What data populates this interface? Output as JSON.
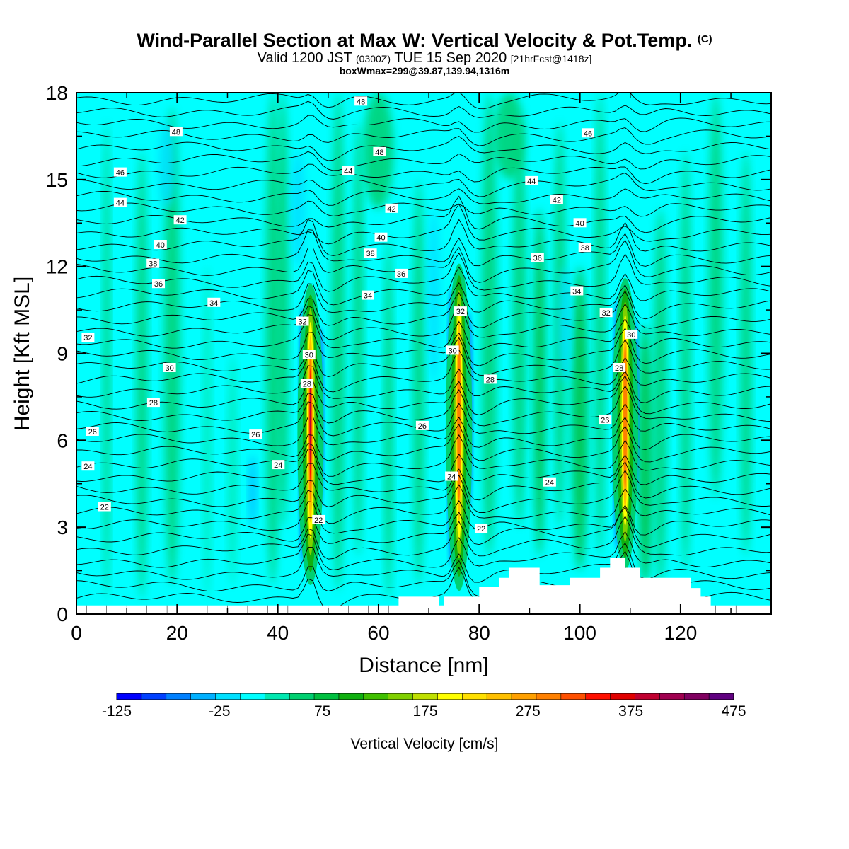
{
  "title": {
    "main": "Wind-Parallel Section at Max W: Vertical Velocity & Pot.Temp.",
    "copyright": "(C)",
    "valid_prefix": "Valid 1200 JST",
    "valid_utc": "(0300Z)",
    "valid_date": "TUE 15 Sep 2020",
    "forecast": "[21hrFcst@1418z]",
    "box": "boxWmax=299@39.87,139.94,1316m"
  },
  "chart_data": {
    "type": "heatmap",
    "xlabel": "Distance [nm]",
    "ylabel": "Height [Kft MSL]",
    "xlim": [
      0,
      138
    ],
    "ylim": [
      0,
      18
    ],
    "x_ticks": [
      "0",
      "20",
      "40",
      "60",
      "80",
      "100",
      "120"
    ],
    "y_ticks": [
      "0",
      "3",
      "6",
      "9",
      "12",
      "15",
      "18"
    ],
    "colorbar": {
      "title": "Vertical Velocity [cm/s]",
      "range": [
        -125,
        475
      ],
      "tick_labels": [
        "-125",
        "-25",
        "75",
        "175",
        "275",
        "375",
        "475"
      ],
      "colors": [
        "#0000ff",
        "#0040ff",
        "#0080ff",
        "#00b0ff",
        "#00e0ff",
        "#00ffff",
        "#00e8b0",
        "#00d070",
        "#00c040",
        "#10b010",
        "#40c000",
        "#80d000",
        "#c0e000",
        "#ffff00",
        "#ffe000",
        "#ffc000",
        "#ffa000",
        "#ff8000",
        "#ff5000",
        "#ff1000",
        "#e00000",
        "#c00030",
        "#a00050",
        "#800060",
        "#600080"
      ]
    },
    "updraft_cores": [
      {
        "x": 46.5,
        "y_bottom": 1.0,
        "y_top": 11.4,
        "peak_w": 380
      },
      {
        "x": 76.0,
        "y_bottom": 0.8,
        "y_top": 12.1,
        "peak_w": 280
      },
      {
        "x": 109.0,
        "y_bottom": 1.5,
        "y_top": 11.6,
        "peak_w": 299
      }
    ],
    "terrain": [
      [
        0,
        0.3
      ],
      [
        64,
        0.3
      ],
      [
        64,
        0.6
      ],
      [
        72,
        0.6
      ],
      [
        72,
        0.3
      ],
      [
        73,
        0.3
      ],
      [
        73,
        0.6
      ],
      [
        80,
        0.6
      ],
      [
        80,
        0.95
      ],
      [
        84,
        0.95
      ],
      [
        84,
        1.25
      ],
      [
        86,
        1.25
      ],
      [
        86,
        1.6
      ],
      [
        92,
        1.6
      ],
      [
        92,
        1.0
      ],
      [
        98,
        1.0
      ],
      [
        98,
        1.25
      ],
      [
        104,
        1.25
      ],
      [
        104,
        1.6
      ],
      [
        106,
        1.6
      ],
      [
        106,
        1.95
      ],
      [
        109,
        1.95
      ],
      [
        109,
        1.6
      ],
      [
        112,
        1.6
      ],
      [
        112,
        1.25
      ],
      [
        122,
        1.25
      ],
      [
        122,
        0.9
      ],
      [
        124,
        0.9
      ],
      [
        124,
        0.6
      ],
      [
        126,
        0.6
      ],
      [
        126,
        0.3
      ],
      [
        138,
        0.3
      ]
    ],
    "theta_contour_labels": [
      {
        "x": 19.8,
        "y": 16.65,
        "text": "48"
      },
      {
        "x": 56.5,
        "y": 17.7,
        "text": "48"
      },
      {
        "x": 60.2,
        "y": 15.95,
        "text": "48"
      },
      {
        "x": 101.6,
        "y": 16.6,
        "text": "46"
      },
      {
        "x": 8.7,
        "y": 15.25,
        "text": "46"
      },
      {
        "x": 8.7,
        "y": 14.2,
        "text": "44"
      },
      {
        "x": 54,
        "y": 15.3,
        "text": "44"
      },
      {
        "x": 90.4,
        "y": 14.95,
        "text": "44"
      },
      {
        "x": 20.6,
        "y": 13.6,
        "text": "42"
      },
      {
        "x": 62.6,
        "y": 14.0,
        "text": "42"
      },
      {
        "x": 95.4,
        "y": 14.3,
        "text": "42"
      },
      {
        "x": 16.7,
        "y": 12.75,
        "text": "40"
      },
      {
        "x": 60.5,
        "y": 13.0,
        "text": "40"
      },
      {
        "x": 100,
        "y": 13.5,
        "text": "40"
      },
      {
        "x": 15.2,
        "y": 12.1,
        "text": "38"
      },
      {
        "x": 58.4,
        "y": 12.45,
        "text": "38"
      },
      {
        "x": 101,
        "y": 12.65,
        "text": "38"
      },
      {
        "x": 16.3,
        "y": 11.4,
        "text": "36"
      },
      {
        "x": 64.5,
        "y": 11.75,
        "text": "36"
      },
      {
        "x": 91.6,
        "y": 12.3,
        "text": "36"
      },
      {
        "x": 27.3,
        "y": 10.75,
        "text": "34"
      },
      {
        "x": 57.9,
        "y": 11.0,
        "text": "34"
      },
      {
        "x": 99.4,
        "y": 11.15,
        "text": "34"
      },
      {
        "x": 44.9,
        "y": 10.1,
        "text": "32"
      },
      {
        "x": 76.3,
        "y": 10.45,
        "text": "32"
      },
      {
        "x": 105.2,
        "y": 10.4,
        "text": "32"
      },
      {
        "x": 2.3,
        "y": 9.55,
        "text": "32"
      },
      {
        "x": 46.2,
        "y": 8.95,
        "text": "30"
      },
      {
        "x": 74.7,
        "y": 9.1,
        "text": "30"
      },
      {
        "x": 110.2,
        "y": 9.65,
        "text": "30"
      },
      {
        "x": 18.5,
        "y": 8.5,
        "text": "30"
      },
      {
        "x": 45.8,
        "y": 7.95,
        "text": "28"
      },
      {
        "x": 82.2,
        "y": 8.1,
        "text": "28"
      },
      {
        "x": 107.8,
        "y": 8.5,
        "text": "28"
      },
      {
        "x": 15.3,
        "y": 7.3,
        "text": "28"
      },
      {
        "x": 3.2,
        "y": 6.3,
        "text": "26"
      },
      {
        "x": 35.6,
        "y": 6.2,
        "text": "26"
      },
      {
        "x": 68.7,
        "y": 6.5,
        "text": "26"
      },
      {
        "x": 105,
        "y": 6.7,
        "text": "26"
      },
      {
        "x": 2.3,
        "y": 5.1,
        "text": "24"
      },
      {
        "x": 40.1,
        "y": 5.15,
        "text": "24"
      },
      {
        "x": 74.5,
        "y": 4.75,
        "text": "24"
      },
      {
        "x": 94,
        "y": 4.55,
        "text": "24"
      },
      {
        "x": 5.6,
        "y": 3.7,
        "text": "22"
      },
      {
        "x": 48.1,
        "y": 3.25,
        "text": "22"
      },
      {
        "x": 80.4,
        "y": 2.95,
        "text": "22"
      }
    ]
  }
}
